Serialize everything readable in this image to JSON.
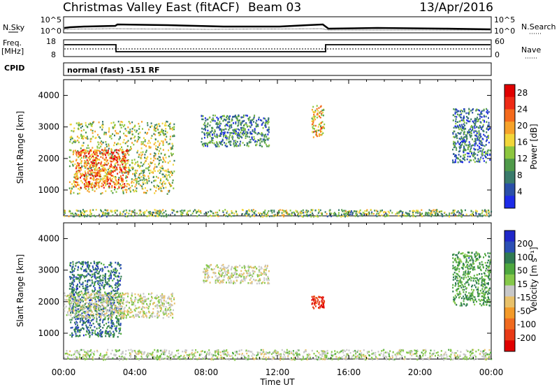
{
  "header": {
    "station": "Christmas Valley East (fitACF)",
    "beam": "Beam 03",
    "date": "13/Apr/2016"
  },
  "noise_panel": {
    "left_label": "N.Sky",
    "left_ticks": [
      "10^5",
      "10^0"
    ],
    "right_label": "N.Search",
    "right_ticks": [
      "10^5",
      "10^0"
    ]
  },
  "freq_panel": {
    "left_label_1": "Freq.",
    "left_label_2": "[MHz]",
    "left_ticks": [
      "18",
      "8"
    ],
    "right_label": "Nave",
    "right_ticks": [
      "60",
      "0"
    ]
  },
  "cpid": {
    "label": "CPID",
    "text": "normal (fast) -151 RF"
  },
  "colors": {
    "power_scale": [
      "#1d2be8",
      "#2a4fa8",
      "#3a7b6b",
      "#4f9a4a",
      "#8dc63f",
      "#f2d63a",
      "#f6a22a",
      "#f46a1c",
      "#ee2a16",
      "#e00000"
    ],
    "velocity_scale": [
      "#1f27c9",
      "#2b4fb4",
      "#2f7a52",
      "#4ea83e",
      "#85c84a",
      "#c8c8c8",
      "#e8c16a",
      "#f39a29",
      "#f06a1f",
      "#e83a17",
      "#e00000"
    ]
  },
  "chart_data": [
    {
      "type": "heatmap",
      "title": "Christmas Valley East (fitACF) Beam 03 13/Apr/2016",
      "panel": "power",
      "x_ticks": [
        "00:00",
        "04:00",
        "08:00",
        "12:00",
        "16:00",
        "20:00",
        "00:00"
      ],
      "xlabel": "Time UT",
      "ylabel": "Slant Range [km]",
      "y_ticks": [
        1000,
        2000,
        3000,
        4000
      ],
      "ylim": [
        180,
        4500
      ],
      "xlim_hours": [
        0,
        24
      ],
      "colorbar": {
        "label": "Power [dB]",
        "ticks": [
          "4",
          "8",
          "12",
          "16",
          "20",
          "24",
          "28"
        ],
        "range": [
          0,
          30
        ]
      },
      "echo_regions": [
        {
          "t": [
            0.3,
            6.2
          ],
          "r": [
            900,
            3200
          ],
          "value": 14
        },
        {
          "t": [
            0.6,
            3.6
          ],
          "r": [
            1100,
            2300
          ],
          "value": 22
        },
        {
          "t": [
            7.7,
            11.5
          ],
          "r": [
            2400,
            3400
          ],
          "value": 8
        },
        {
          "t": [
            13.9,
            14.6
          ],
          "r": [
            2700,
            3700
          ],
          "value": 18
        },
        {
          "t": [
            21.8,
            23.9
          ],
          "r": [
            1900,
            3600
          ],
          "value": 7
        },
        {
          "t": [
            0.0,
            24.0
          ],
          "r": [
            180,
            400
          ],
          "value": 12
        }
      ]
    },
    {
      "type": "heatmap",
      "panel": "velocity",
      "x_ticks": [
        "00:00",
        "04:00",
        "08:00",
        "12:00",
        "16:00",
        "20:00",
        "00:00"
      ],
      "xlabel": "Time UT",
      "ylabel": "Slant Range [km]",
      "y_ticks": [
        1000,
        2000,
        3000,
        4000
      ],
      "ylim": [
        180,
        4500
      ],
      "xlim_hours": [
        0,
        24
      ],
      "colorbar": {
        "label": "Velocity [m s⁻¹]",
        "ticks": [
          "200",
          "100",
          "50",
          "15",
          "-15",
          "-50",
          "-100",
          "-200"
        ],
        "range": [
          -250,
          250
        ]
      },
      "echo_regions": [
        {
          "t": [
            0.3,
            3.2
          ],
          "r": [
            900,
            3300
          ],
          "value": 150
        },
        {
          "t": [
            0.0,
            6.2
          ],
          "r": [
            1500,
            2300
          ],
          "value": 0
        },
        {
          "t": [
            7.8,
            11.5
          ],
          "r": [
            2600,
            3200
          ],
          "value": 0
        },
        {
          "t": [
            13.9,
            14.6
          ],
          "r": [
            1800,
            2200
          ],
          "value": -200
        },
        {
          "t": [
            21.8,
            23.9
          ],
          "r": [
            1900,
            3600
          ],
          "value": 100
        },
        {
          "t": [
            0.0,
            24.0
          ],
          "r": [
            180,
            500
          ],
          "value": 20
        }
      ]
    }
  ]
}
